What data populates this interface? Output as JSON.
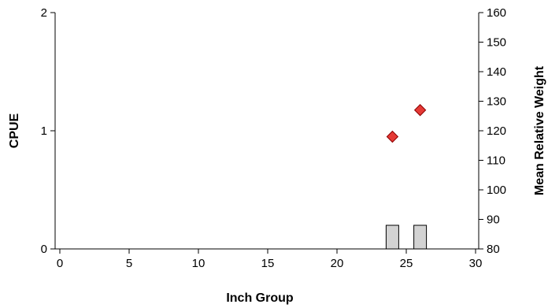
{
  "chart_data": {
    "type": "bar",
    "xlabel": "Inch Group",
    "ylabel": "CPUE",
    "y2label": "Mean Relative Weight",
    "xlim": [
      0,
      30
    ],
    "ylim": [
      0,
      2
    ],
    "y2lim": [
      80,
      160
    ],
    "xticks": [
      0,
      5,
      10,
      15,
      20,
      25,
      30
    ],
    "yticks": [
      0,
      1,
      2
    ],
    "y2ticks": [
      80,
      90,
      100,
      110,
      120,
      130,
      140,
      150,
      160
    ],
    "grid": false,
    "series": [
      {
        "type": "bar",
        "axis": "left",
        "color": "#d3d3d3",
        "points": [
          {
            "x": 24,
            "y": 0.2
          },
          {
            "x": 26,
            "y": 0.2
          }
        ]
      },
      {
        "type": "scatter",
        "axis": "right",
        "marker": "diamond",
        "color": "#e53935",
        "points": [
          {
            "x": 24,
            "y": 118
          },
          {
            "x": 26,
            "y": 127
          }
        ]
      }
    ]
  }
}
